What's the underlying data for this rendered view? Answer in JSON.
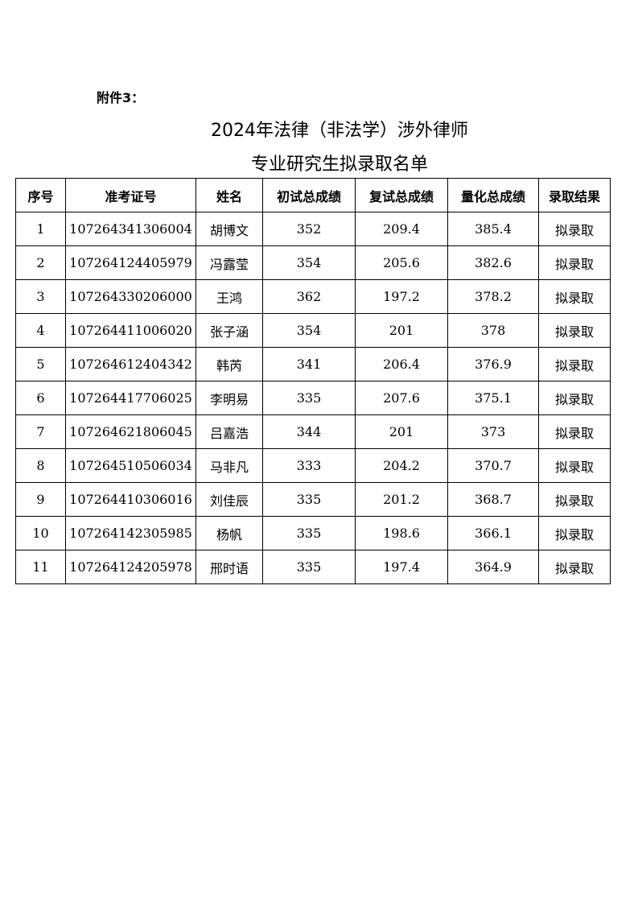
{
  "annex": "附件3：",
  "title_line1": "2024年法律（非法学）涉外律师",
  "title_line2": "专业研究生拟录取名单",
  "table": {
    "headers": [
      "序号",
      "准考证号",
      "姓名",
      "初试总成绩",
      "复试总成绩",
      "量化总成绩",
      "录取结果"
    ],
    "rows": [
      [
        "1",
        "107264341306004",
        "胡博文",
        "352",
        "209.4",
        "385.4",
        "拟录取"
      ],
      [
        "2",
        "107264124405979",
        "冯露莹",
        "354",
        "205.6",
        "382.6",
        "拟录取"
      ],
      [
        "3",
        "107264330206000",
        "王鸿",
        "362",
        "197.2",
        "378.2",
        "拟录取"
      ],
      [
        "4",
        "107264411006020",
        "张子涵",
        "354",
        "201",
        "378",
        "拟录取"
      ],
      [
        "5",
        "107264612404342",
        "韩芮",
        "341",
        "206.4",
        "376.9",
        "拟录取"
      ],
      [
        "6",
        "107264417706025",
        "李明易",
        "335",
        "207.6",
        "375.1",
        "拟录取"
      ],
      [
        "7",
        "107264621806045",
        "吕嘉浩",
        "344",
        "201",
        "373",
        "拟录取"
      ],
      [
        "8",
        "107264510506034",
        "马非凡",
        "333",
        "204.2",
        "370.7",
        "拟录取"
      ],
      [
        "9",
        "107264410306016",
        "刘佳辰",
        "335",
        "201.2",
        "368.7",
        "拟录取"
      ],
      [
        "10",
        "107264142305985",
        "杨帆",
        "335",
        "198.6",
        "366.1",
        "拟录取"
      ],
      [
        "11",
        "107264124205978",
        "邢时语",
        "335",
        "197.4",
        "364.9",
        "拟录取"
      ]
    ]
  }
}
